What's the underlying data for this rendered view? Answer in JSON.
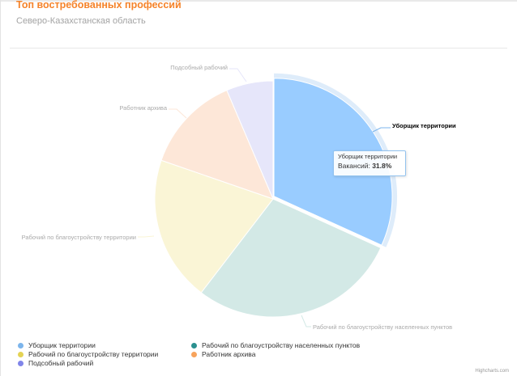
{
  "chart_data": {
    "type": "pie",
    "title": "Топ востребованных профессий",
    "subtitle": "Северо-Казахстанская область",
    "slices": [
      {
        "name": "Уборщик территории",
        "value": 31.8,
        "color": "#99ccff",
        "legend_color": "#7cb5ec",
        "label_color": "#000000",
        "selected": true
      },
      {
        "name": "Рабочий по благоустройству населенных пунктов",
        "value": 28.6,
        "color": "#d3e9e6",
        "legend_color": "#2b908f",
        "label_color": "#aaaaaa",
        "selected": false
      },
      {
        "name": "Рабочий по благоустройству территории",
        "value": 19.9,
        "color": "#faf5d6",
        "legend_color": "#e4d354",
        "label_color": "#aaaaaa",
        "selected": false
      },
      {
        "name": "Работник архива",
        "value": 13.3,
        "color": "#fde7d8",
        "legend_color": "#f7a35c",
        "label_color": "#aaaaaa",
        "selected": false
      },
      {
        "name": "Подсобный рабочий",
        "value": 6.4,
        "color": "#e6e6fa",
        "legend_color": "#8085e9",
        "label_color": "#aaaaaa",
        "selected": false
      }
    ]
  },
  "tooltip": {
    "name": "Уборщик территории",
    "label": "Вакансий: ",
    "value": "31.8%"
  },
  "credits": "Highcharts.com"
}
